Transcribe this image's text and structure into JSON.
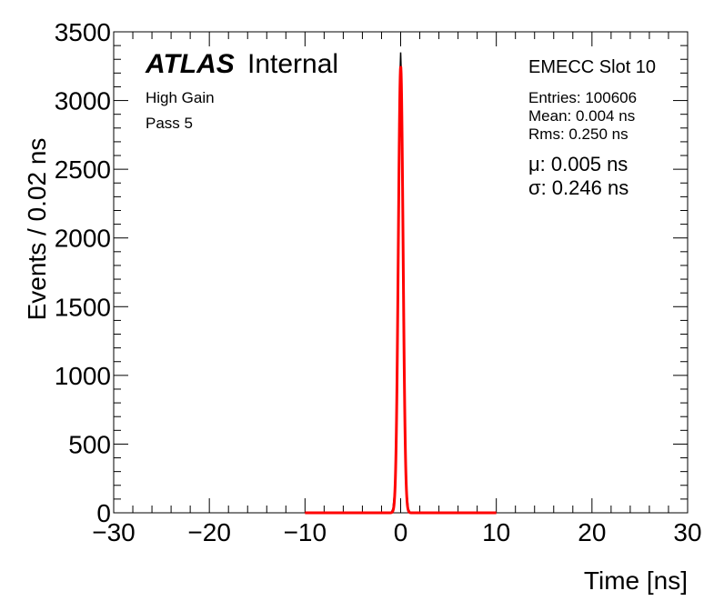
{
  "labels": {
    "atlas": "ATLAS",
    "internal": "Internal",
    "high_gain": "High Gain",
    "pass": "Pass 5",
    "slot": "EMECC Slot 10",
    "entries": "Entries: 100606",
    "mean": "Mean: 0.004 ns",
    "rms": "Rms: 0.250 ns",
    "mu": "μ: 0.005 ns",
    "sigma": "σ: 0.246 ns"
  },
  "chart_data": {
    "type": "line",
    "title": "",
    "xlabel": "Time [ns]",
    "ylabel": "Events / 0.02 ns",
    "xlim": [
      -30,
      30
    ],
    "ylim": [
      0,
      3500
    ],
    "xticks": [
      -30,
      -20,
      -10,
      0,
      10,
      20,
      30
    ],
    "xtick_labels": [
      "−30",
      "−20",
      "−10",
      "0",
      "10",
      "20",
      "30"
    ],
    "yticks": [
      0,
      500,
      1000,
      1500,
      2000,
      2500,
      3000,
      3500
    ],
    "series": [
      {
        "kind": "histogram",
        "color": "#000000",
        "x": [
          -1.0,
          -0.8,
          -0.6,
          -0.5,
          -0.4,
          -0.3,
          -0.2,
          -0.1,
          0.0,
          0.1,
          0.2,
          0.3,
          0.4,
          0.5,
          0.6,
          0.8,
          1.0
        ],
        "y": [
          0,
          30,
          180,
          500,
          900,
          1500,
          2300,
          3100,
          3350,
          3100,
          2300,
          1500,
          900,
          500,
          180,
          30,
          0
        ]
      },
      {
        "kind": "gaussian_fit",
        "color": "#ff0000",
        "x_range": [
          -10,
          10
        ],
        "amplitude": 3250,
        "mean": 0.005,
        "sigma": 0.246
      }
    ]
  }
}
